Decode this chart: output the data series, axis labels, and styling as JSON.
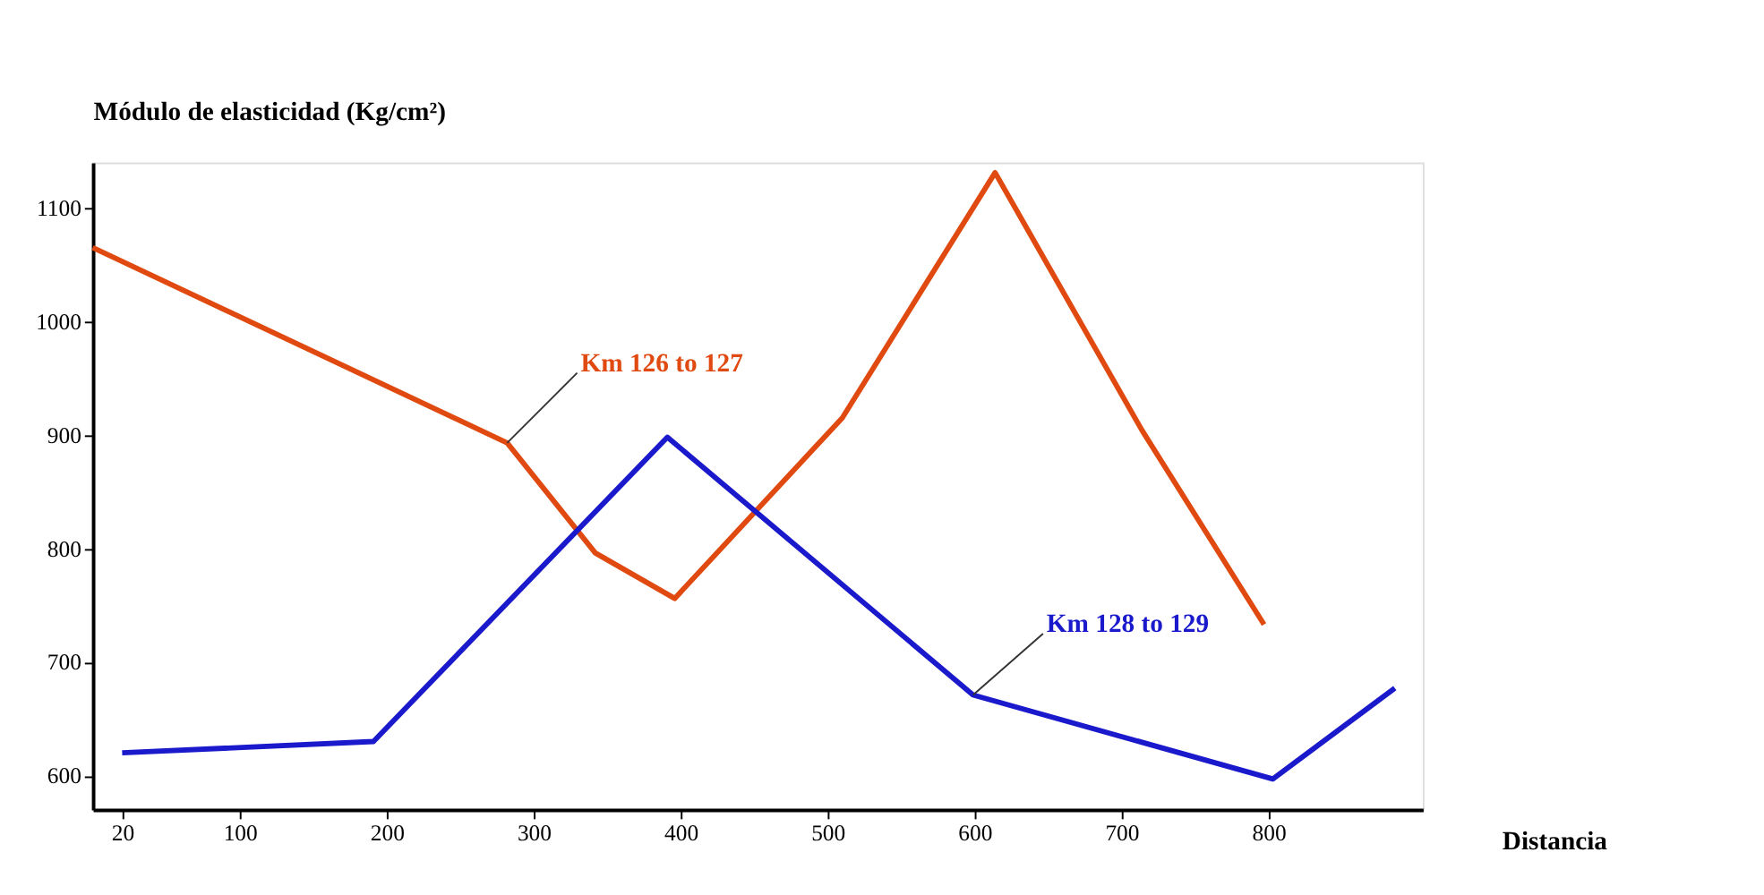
{
  "chart_data": {
    "type": "line",
    "xlabel": "Distancia",
    "ylabel": "Módulo de elasticidad (Kg/cm²)",
    "xlim": [
      0,
      905
    ],
    "xticks": [
      20,
      100,
      200,
      300,
      400,
      500,
      600,
      700,
      800
    ],
    "ylim": [
      570,
      1140
    ],
    "yticks": [
      600,
      700,
      800,
      900,
      1000,
      1100
    ],
    "grid": false,
    "legend": false,
    "marker": "none",
    "line_style": "solid",
    "series": [
      {
        "name": "Km 126 to 127",
        "color": "#e0490f",
        "x": [
          0,
          282,
          342,
          396,
          510,
          614,
          714,
          797
        ],
        "values": [
          1065,
          893,
          796,
          756,
          915,
          1131,
          904,
          733
        ]
      },
      {
        "name": "Km 128 to 129",
        "color": "#1a1acc",
        "x": [
          20,
          191,
          391,
          599,
          803,
          886
        ],
        "values": [
          620,
          630,
          898,
          671,
          597,
          677
        ]
      }
    ]
  }
}
